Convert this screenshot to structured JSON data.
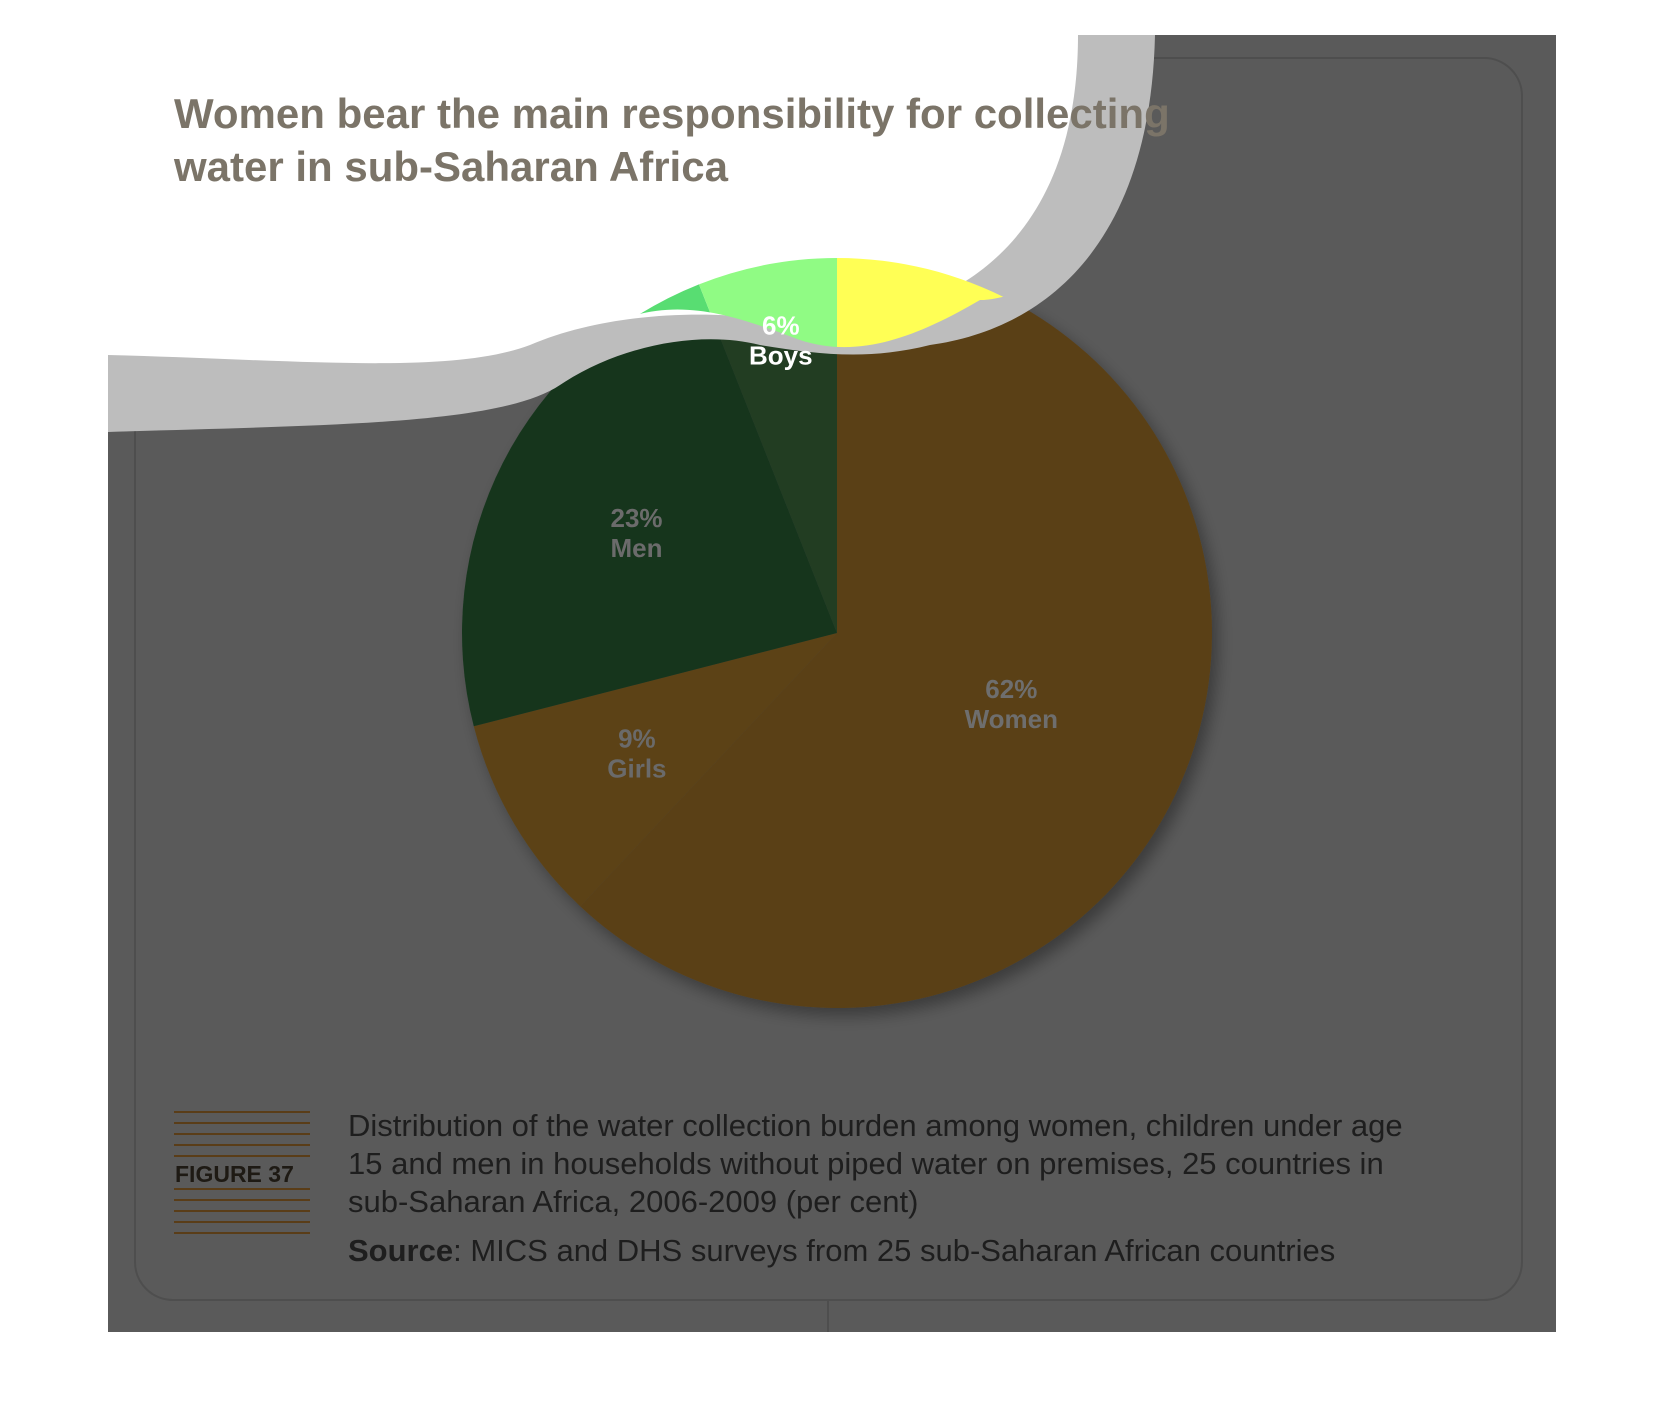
{
  "title": {
    "line1": "Women bear the main responsibility for collecting",
    "line2": "water in sub-Saharan Africa"
  },
  "figure": {
    "tag": "FIGURE 37",
    "caption_lines": [
      "Distribution of the water collection burden among women, children under age",
      "15 and men in households without piped water on premises, 25 countries in",
      "sub-Saharan Africa, 2006-2009 (per cent)"
    ],
    "source_label": "Source",
    "source_text": ": MICS and DHS surveys from 25 sub-Saharan African countries"
  },
  "chart_data": {
    "type": "pie",
    "title": "Women bear the main responsibility for collecting water in sub-Saharan Africa",
    "unit": "per cent",
    "slices": [
      {
        "label": "Women",
        "value": 62,
        "value_label": "62%",
        "color": "#5a4018"
      },
      {
        "label": "Girls",
        "value": 9,
        "value_label": "9%",
        "color": "#5c4317"
      },
      {
        "label": "Men",
        "value": 23,
        "value_label": "23%",
        "color": "#16361d"
      },
      {
        "label": "Boys",
        "value": 6,
        "value_label": "6%",
        "color": "#213d22"
      }
    ]
  },
  "colors": {
    "panel": "#5a5a5a",
    "women": "#5a4018",
    "men": "#16361d",
    "boys_highlight": "#90fb84",
    "women_highlight": "#ffff55",
    "men_highlight": "#58dd72",
    "title": "#7b7468"
  }
}
